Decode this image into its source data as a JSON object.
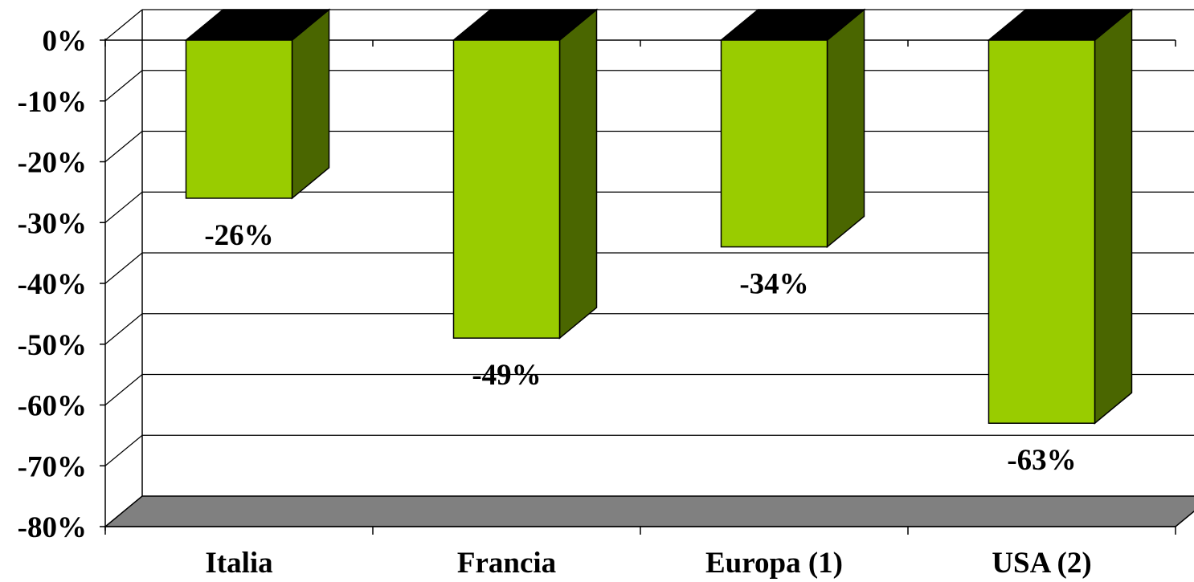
{
  "chart_data": {
    "type": "bar",
    "categories": [
      "Italia",
      "Francia",
      "Europa (1)",
      "USA (2)"
    ],
    "values": [
      -26,
      -49,
      -34,
      -63
    ],
    "value_labels": [
      "-26%",
      "-49%",
      "-34%",
      "-63%"
    ],
    "ylim": [
      -80,
      0
    ],
    "yticks": [
      0,
      -10,
      -20,
      -30,
      -40,
      -50,
      -60,
      -70,
      -80
    ],
    "ytick_labels": [
      "0%",
      "-10%",
      "-20%",
      "-30%",
      "-40%",
      "-50%",
      "-60%",
      "-70%",
      "-80%"
    ],
    "grid": true,
    "three_d": true,
    "colors": {
      "bar_front": "#99CC00",
      "bar_side": "#4A6600",
      "bar_cap": "#000000",
      "floor": "#808080"
    }
  }
}
